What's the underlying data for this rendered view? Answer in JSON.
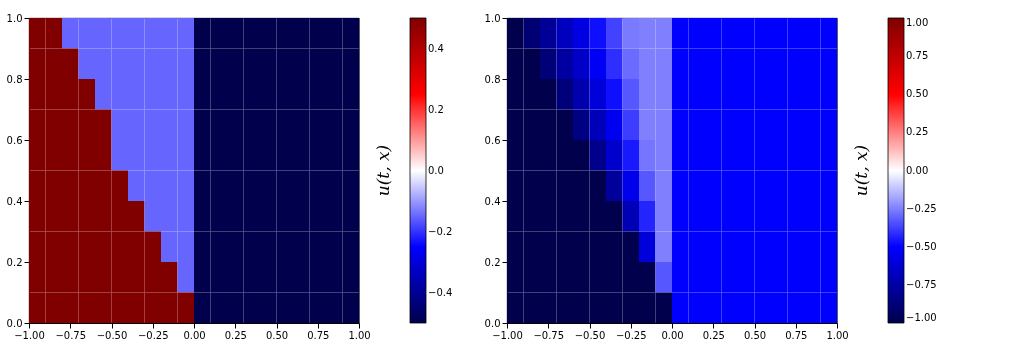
{
  "chart_data": [
    {
      "type": "heatmap",
      "clabel": "u(t, x)",
      "grid": false,
      "xlim": [
        -1,
        1
      ],
      "ylim": [
        0,
        1
      ],
      "xticks": [
        {
          "value": -1,
          "label": "−1.00"
        },
        {
          "value": -0.75,
          "label": "−0.75"
        },
        {
          "value": -0.5,
          "label": "−0.50"
        },
        {
          "value": -0.25,
          "label": "−0.25"
        },
        {
          "value": 0,
          "label": "0.00"
        },
        {
          "value": 0.25,
          "label": "0.25"
        },
        {
          "value": 0.5,
          "label": "0.50"
        },
        {
          "value": 0.75,
          "label": "0.75"
        },
        {
          "value": 1,
          "label": "1.00"
        }
      ],
      "yticks": [
        {
          "value": 0,
          "label": "0.0"
        },
        {
          "value": 0.2,
          "label": "0.2"
        },
        {
          "value": 0.4,
          "label": "0.4"
        },
        {
          "value": 0.6,
          "label": "0.6"
        },
        {
          "value": 0.8,
          "label": "0.8"
        },
        {
          "value": 1,
          "label": "1.0"
        }
      ],
      "clim": [
        -0.5,
        0.5
      ],
      "cticks": [
        {
          "value": -0.4,
          "label": "−0.4"
        },
        {
          "value": -0.2,
          "label": "−0.2"
        },
        {
          "value": 0,
          "label": "0.0"
        },
        {
          "value": 0.2,
          "label": "0.2"
        },
        {
          "value": 0.4,
          "label": "0.4"
        }
      ],
      "colors": [
        "#00004c",
        "#0000ff",
        "#ffffff",
        "#ff0000",
        "#800000"
      ],
      "cells": [
        [
          0.5,
          0.5,
          -0.15,
          -0.15,
          -0.15,
          -0.15,
          -0.15,
          -0.15,
          -0.15,
          -0.15,
          -0.5,
          -0.5,
          -0.5,
          -0.5,
          -0.5,
          -0.5,
          -0.5,
          -0.5,
          -0.5,
          -0.5
        ],
        [
          0.5,
          0.5,
          0.5,
          -0.15,
          -0.15,
          -0.15,
          -0.15,
          -0.15,
          -0.15,
          -0.15,
          -0.5,
          -0.5,
          -0.5,
          -0.5,
          -0.5,
          -0.5,
          -0.5,
          -0.5,
          -0.5,
          -0.5
        ],
        [
          0.5,
          0.5,
          0.5,
          0.5,
          -0.15,
          -0.15,
          -0.15,
          -0.15,
          -0.15,
          -0.15,
          -0.5,
          -0.5,
          -0.5,
          -0.5,
          -0.5,
          -0.5,
          -0.5,
          -0.5,
          -0.5,
          -0.5
        ],
        [
          0.5,
          0.5,
          0.5,
          0.5,
          0.5,
          -0.15,
          -0.15,
          -0.15,
          -0.15,
          -0.15,
          -0.5,
          -0.5,
          -0.5,
          -0.5,
          -0.5,
          -0.5,
          -0.5,
          -0.5,
          -0.5,
          -0.5
        ],
        [
          0.5,
          0.5,
          0.5,
          0.5,
          0.5,
          -0.15,
          -0.15,
          -0.15,
          -0.15,
          -0.15,
          -0.5,
          -0.5,
          -0.5,
          -0.5,
          -0.5,
          -0.5,
          -0.5,
          -0.5,
          -0.5,
          -0.5
        ],
        [
          0.5,
          0.5,
          0.5,
          0.5,
          0.5,
          0.5,
          -0.15,
          -0.15,
          -0.15,
          -0.15,
          -0.5,
          -0.5,
          -0.5,
          -0.5,
          -0.5,
          -0.5,
          -0.5,
          -0.5,
          -0.5,
          -0.5
        ],
        [
          0.5,
          0.5,
          0.5,
          0.5,
          0.5,
          0.5,
          0.5,
          -0.15,
          -0.15,
          -0.15,
          -0.5,
          -0.5,
          -0.5,
          -0.5,
          -0.5,
          -0.5,
          -0.5,
          -0.5,
          -0.5,
          -0.5
        ],
        [
          0.5,
          0.5,
          0.5,
          0.5,
          0.5,
          0.5,
          0.5,
          0.5,
          -0.15,
          -0.15,
          -0.5,
          -0.5,
          -0.5,
          -0.5,
          -0.5,
          -0.5,
          -0.5,
          -0.5,
          -0.5,
          -0.5
        ],
        [
          0.5,
          0.5,
          0.5,
          0.5,
          0.5,
          0.5,
          0.5,
          0.5,
          0.5,
          -0.15,
          -0.5,
          -0.5,
          -0.5,
          -0.5,
          -0.5,
          -0.5,
          -0.5,
          -0.5,
          -0.5,
          -0.5
        ],
        [
          0.5,
          0.5,
          0.5,
          0.5,
          0.5,
          0.5,
          0.5,
          0.5,
          0.5,
          0.5,
          -0.5,
          -0.5,
          -0.5,
          -0.5,
          -0.5,
          -0.5,
          -0.5,
          -0.5,
          -0.5,
          -0.5
        ]
      ]
    },
    {
      "type": "heatmap",
      "clabel": "u(t, x)",
      "grid": false,
      "xlim": [
        -1,
        1
      ],
      "ylim": [
        0,
        1
      ],
      "xticks": [
        {
          "value": -1,
          "label": "−1.00"
        },
        {
          "value": -0.75,
          "label": "−0.75"
        },
        {
          "value": -0.5,
          "label": "−0.50"
        },
        {
          "value": -0.25,
          "label": "−0.25"
        },
        {
          "value": 0,
          "label": "0.00"
        },
        {
          "value": 0.25,
          "label": "0.25"
        },
        {
          "value": 0.5,
          "label": "0.50"
        },
        {
          "value": 0.75,
          "label": "0.75"
        },
        {
          "value": 1,
          "label": "1.00"
        }
      ],
      "yticks": [
        {
          "value": 0,
          "label": "0.0"
        },
        {
          "value": 0.2,
          "label": "0.2"
        },
        {
          "value": 0.4,
          "label": "0.4"
        },
        {
          "value": 0.6,
          "label": "0.6"
        },
        {
          "value": 0.8,
          "label": "0.8"
        },
        {
          "value": 1,
          "label": "1.0"
        }
      ],
      "clim": [
        -1,
        1
      ],
      "cticks": [
        {
          "value": -1,
          "label": "−1.00"
        },
        {
          "value": -0.75,
          "label": "−0.75"
        },
        {
          "value": -0.5,
          "label": "−0.50"
        },
        {
          "value": -0.25,
          "label": "−0.25"
        },
        {
          "value": 0,
          "label": "0.00"
        },
        {
          "value": 0.25,
          "label": "0.25"
        },
        {
          "value": 0.5,
          "label": "0.50"
        },
        {
          "value": 0.75,
          "label": "0.75"
        },
        {
          "value": 1,
          "label": "1.00"
        }
      ],
      "colors": [
        "#00004c",
        "#0000ff",
        "#ffffff",
        "#ff0000",
        "#800000"
      ],
      "cells": [
        [
          -1,
          -0.89,
          -0.79,
          -0.68,
          -0.58,
          -0.47,
          -0.37,
          -0.26,
          -0.25,
          -0.25,
          -0.5,
          -0.5,
          -0.5,
          -0.5,
          -0.5,
          -0.5,
          -0.5,
          -0.5,
          -0.5,
          -0.5
        ],
        [
          -1,
          -1,
          -0.88,
          -0.76,
          -0.65,
          -0.53,
          -0.41,
          -0.29,
          -0.25,
          -0.25,
          -0.5,
          -0.5,
          -0.5,
          -0.5,
          -0.5,
          -0.5,
          -0.5,
          -0.5,
          -0.5,
          -0.5
        ],
        [
          -1,
          -1,
          -1,
          -0.87,
          -0.73,
          -0.6,
          -0.47,
          -0.33,
          -0.25,
          -0.25,
          -0.5,
          -0.5,
          -0.5,
          -0.5,
          -0.5,
          -0.5,
          -0.5,
          -0.5,
          -0.5,
          -0.5
        ],
        [
          -1,
          -1,
          -1,
          -1,
          -0.85,
          -0.69,
          -0.54,
          -0.38,
          -0.25,
          -0.25,
          -0.5,
          -0.5,
          -0.5,
          -0.5,
          -0.5,
          -0.5,
          -0.5,
          -0.5,
          -0.5,
          -0.5
        ],
        [
          -1,
          -1,
          -1,
          -1,
          -1,
          -0.82,
          -0.64,
          -0.45,
          -0.27,
          -0.25,
          -0.5,
          -0.5,
          -0.5,
          -0.5,
          -0.5,
          -0.5,
          -0.5,
          -0.5,
          -0.5,
          -0.5
        ],
        [
          -1,
          -1,
          -1,
          -1,
          -1,
          -1,
          -0.78,
          -0.56,
          -0.33,
          -0.25,
          -0.5,
          -0.5,
          -0.5,
          -0.5,
          -0.5,
          -0.5,
          -0.5,
          -0.5,
          -0.5,
          -0.5
        ],
        [
          -1,
          -1,
          -1,
          -1,
          -1,
          -1,
          -1,
          -0.71,
          -0.43,
          -0.25,
          -0.5,
          -0.5,
          -0.5,
          -0.5,
          -0.5,
          -0.5,
          -0.5,
          -0.5,
          -0.5,
          -0.5
        ],
        [
          -1,
          -1,
          -1,
          -1,
          -1,
          -1,
          -1,
          -1,
          -0.6,
          -0.25,
          -0.5,
          -0.5,
          -0.5,
          -0.5,
          -0.5,
          -0.5,
          -0.5,
          -0.5,
          -0.5,
          -0.5
        ],
        [
          -1,
          -1,
          -1,
          -1,
          -1,
          -1,
          -1,
          -1,
          -1,
          -0.33,
          -0.5,
          -0.5,
          -0.5,
          -0.5,
          -0.5,
          -0.5,
          -0.5,
          -0.5,
          -0.5,
          -0.5
        ],
        [
          -1,
          -1,
          -1,
          -1,
          -1,
          -1,
          -1,
          -1,
          -1,
          -1,
          -0.5,
          -0.5,
          -0.5,
          -0.5,
          -0.5,
          -0.5,
          -0.5,
          -0.5,
          -0.5,
          -0.5
        ]
      ]
    }
  ]
}
